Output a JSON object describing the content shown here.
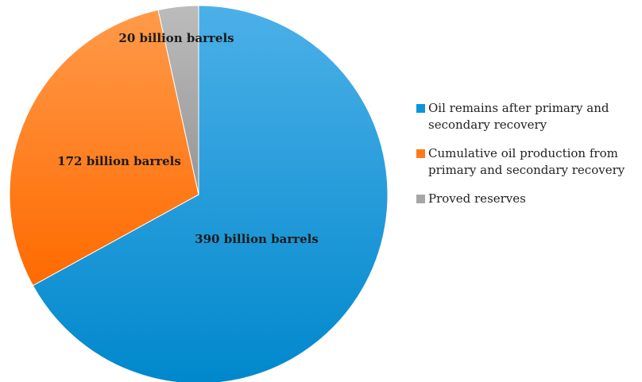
{
  "chart_data": {
    "type": "pie",
    "slices": [
      {
        "name": "Oil remains after primary and secondary recovery",
        "value": 390,
        "label": "390 billion barrels",
        "color": "#0b96dc"
      },
      {
        "name": "Cumulative oil production from primary and secondary recovery",
        "value": 172,
        "label": "172 billion barrels",
        "color": "#ff7a1a"
      },
      {
        "name": "Proved reserves",
        "value": 20,
        "label": "20 billion barrels",
        "color": "#a6a6a6"
      }
    ],
    "legend": {
      "placement": "right",
      "items": [
        {
          "label": "Oil remains after primary and secondary recovery",
          "color": "#0b96dc"
        },
        {
          "label": "Cumulative oil production from primary and secondary recovery",
          "color": "#ff7a1a"
        },
        {
          "label": "Proved reserves",
          "color": "#a6a6a6"
        }
      ]
    }
  }
}
